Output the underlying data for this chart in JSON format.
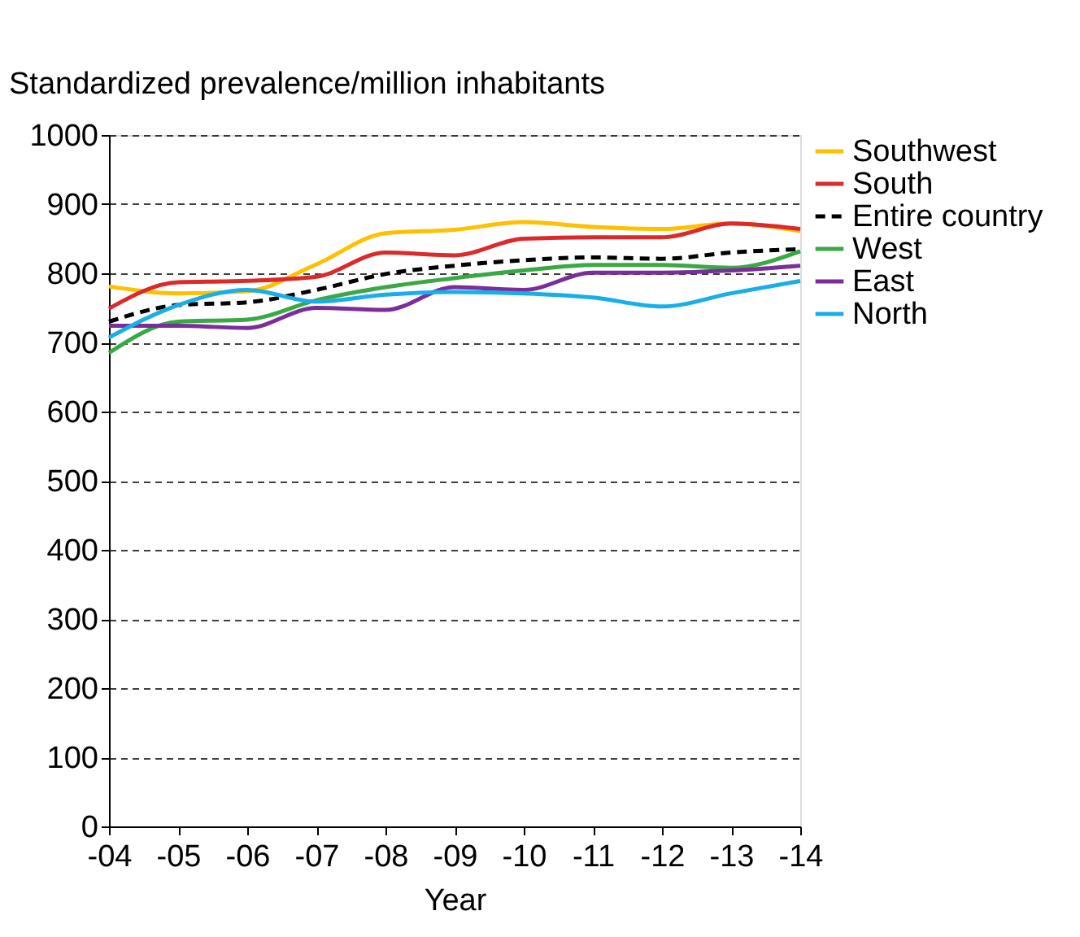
{
  "chart_data": {
    "type": "line",
    "ylabel": "Standardized prevalence/million inhabitants",
    "xlabel": "Year",
    "categories": [
      "-04",
      "-05",
      "-06",
      "-07",
      "-08",
      "-09",
      "-10",
      "-11",
      "-12",
      "-13",
      "-14"
    ],
    "ylim": [
      0,
      1000
    ],
    "yticks": [
      0,
      100,
      200,
      300,
      400,
      500,
      600,
      700,
      800,
      900,
      1000
    ],
    "grid": "y",
    "legend": "right",
    "marker": "none",
    "series": [
      {
        "name": "Southwest",
        "color": "#ffc000",
        "line_style": "solid",
        "values": [
          781,
          771,
          774,
          813,
          858,
          863,
          874,
          867,
          864,
          872,
          861
        ]
      },
      {
        "name": "South",
        "color": "#dc2a2a",
        "line_style": "solid",
        "values": [
          749,
          787,
          789,
          795,
          830,
          826,
          850,
          852,
          852,
          872,
          864
        ]
      },
      {
        "name": "Entire country",
        "color": "#000000",
        "line_style": "dashed",
        "values": [
          730,
          754,
          758,
          776,
          799,
          811,
          819,
          823,
          821,
          830,
          835
        ]
      },
      {
        "name": "West",
        "color": "#3aa845",
        "line_style": "solid",
        "values": [
          685,
          730,
          733,
          761,
          780,
          793,
          804,
          812,
          812,
          808,
          832
        ]
      },
      {
        "name": "East",
        "color": "#7b2d9a",
        "line_style": "solid",
        "values": [
          724,
          724,
          721,
          750,
          747,
          780,
          776,
          801,
          801,
          804,
          811
        ]
      },
      {
        "name": "North",
        "color": "#1aaee8",
        "line_style": "solid",
        "values": [
          707,
          754,
          776,
          759,
          769,
          773,
          771,
          765,
          752,
          771,
          789
        ]
      }
    ]
  }
}
